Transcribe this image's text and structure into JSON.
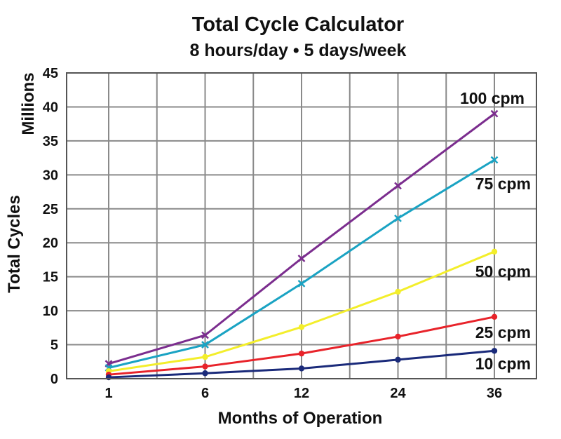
{
  "chart_data": {
    "type": "line",
    "title": "Total Cycle Calculator",
    "subtitle": "8 hours/day • 5 days/week",
    "xlabel": "Months of Operation",
    "ylabel": "Total Cycles",
    "y_unit": "Millions",
    "categories": [
      "1",
      "6",
      "12",
      "24",
      "36"
    ],
    "ylim": [
      0,
      45
    ],
    "yticks": [
      0,
      5,
      10,
      15,
      20,
      25,
      30,
      35,
      40,
      45
    ],
    "grid": true,
    "series": [
      {
        "name": "100 cpm",
        "color": "#7b2d8e",
        "marker": "x",
        "values": [
          2.2,
          6.4,
          17.7,
          28.4,
          39.0
        ]
      },
      {
        "name": "75 cpm",
        "color": "#1aa3c3",
        "marker": "x",
        "values": [
          1.6,
          5.0,
          14.0,
          23.6,
          32.2
        ]
      },
      {
        "name": "50 cpm",
        "color": "#f3ee2b",
        "marker": "circle",
        "values": [
          1.1,
          3.2,
          7.6,
          12.8,
          18.7
        ]
      },
      {
        "name": "25 cpm",
        "color": "#e8232a",
        "marker": "circle",
        "values": [
          0.6,
          1.8,
          3.7,
          6.2,
          9.1
        ]
      },
      {
        "name": "10 cpm",
        "color": "#1a2a7a",
        "marker": "circle",
        "values": [
          0.2,
          0.8,
          1.5,
          2.8,
          4.1
        ]
      }
    ]
  }
}
